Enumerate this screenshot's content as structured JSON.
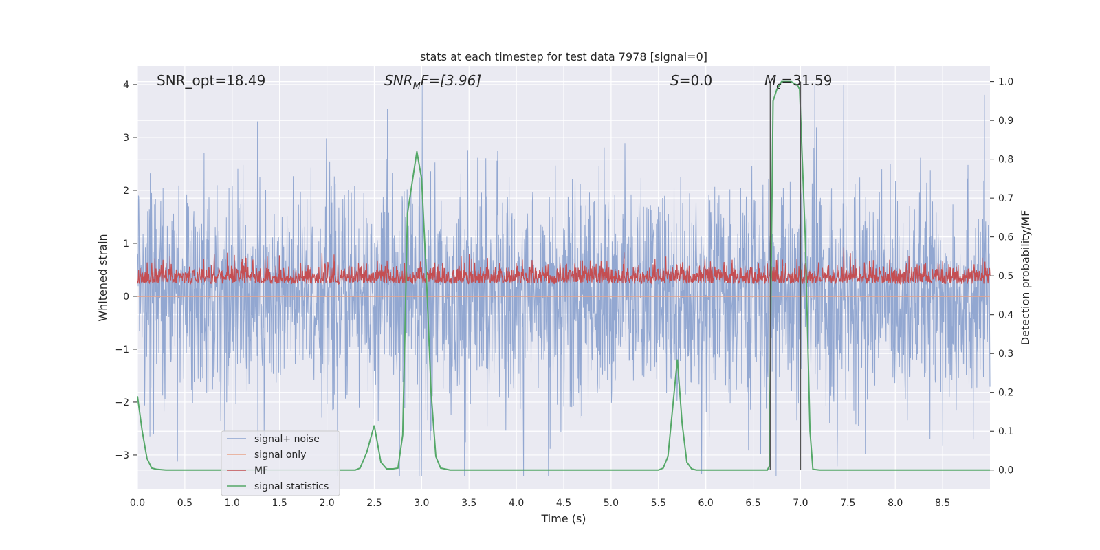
{
  "chart_data": {
    "type": "line",
    "title": "stats at each timestep for test data 7978 [signal=0]",
    "xlabel": "Time (s)",
    "ylabel_left": "Whitened strain",
    "ylabel_right": "Detection probability/MF",
    "xlim": [
      0,
      9.0
    ],
    "ylim_left": [
      -3.65,
      4.35
    ],
    "ylim_right": [
      -0.05,
      1.04
    ],
    "grid": true,
    "legend_position": "lower-left",
    "x_ticks": [
      "0.0",
      "0.5",
      "1.0",
      "1.5",
      "2.0",
      "2.5",
      "3.0",
      "3.5",
      "4.0",
      "4.5",
      "5.0",
      "5.5",
      "6.0",
      "6.5",
      "7.0",
      "7.5",
      "8.0",
      "8.5"
    ],
    "x_tick_values": [
      0,
      0.5,
      1,
      1.5,
      2,
      2.5,
      3,
      3.5,
      4,
      4.5,
      5,
      5.5,
      6,
      6.5,
      7,
      7.5,
      8,
      8.5
    ],
    "y_left_ticks": [
      "4",
      "3",
      "2",
      "1",
      "0",
      "−1",
      "−2",
      "−3"
    ],
    "y_left_tick_values": [
      4,
      3,
      2,
      1,
      0,
      -1,
      -2,
      -3
    ],
    "y_right_ticks": [
      "1.0",
      "0.9",
      "0.8",
      "0.7",
      "0.6",
      "0.5",
      "0.4",
      "0.3",
      "0.2",
      "0.1",
      "0.0"
    ],
    "y_right_tick_values": [
      1.0,
      0.9,
      0.8,
      0.7,
      0.6,
      0.5,
      0.4,
      0.3,
      0.2,
      0.1,
      0.0
    ],
    "annotations": {
      "snr_opt": "SNR_opt=18.49",
      "snr_mf_main": "SNR",
      "snr_mf_sub": "M",
      "snr_mf_rest": "F=[3.96]",
      "s_main": "S",
      "s_rest": "=0.0",
      "mc_main": "M",
      "mc_sub": "c",
      "mc_rest": "=31.59"
    },
    "vertical_lines_x": [
      6.68,
      7.0
    ],
    "series": [
      {
        "name": "signal+ noise",
        "color": "#8da3cf",
        "axis": "left",
        "description_range": [
          -3.4,
          4.0
        ]
      },
      {
        "name": "signal only",
        "color": "#e8a48a",
        "axis": "left",
        "values_constant": 0.0
      },
      {
        "name": "MF",
        "color": "#c44e52",
        "axis": "right",
        "baseline": 0.5,
        "range": [
          0.45,
          0.58
        ]
      },
      {
        "name": "signal statistics",
        "color": "#55a868",
        "axis": "right",
        "x": [
          0,
          0.05,
          0.1,
          0.15,
          0.2,
          0.3,
          0.5,
          0.8,
          1.0,
          1.5,
          2.0,
          2.3,
          2.35,
          2.42,
          2.5,
          2.57,
          2.63,
          2.7,
          2.75,
          2.8,
          2.85,
          2.95,
          3.0,
          3.05,
          3.1,
          3.15,
          3.2,
          3.3,
          3.5,
          4.0,
          4.5,
          5.0,
          5.5,
          5.55,
          5.6,
          5.7,
          5.75,
          5.8,
          5.85,
          5.9,
          6.0,
          6.5,
          6.65,
          6.67,
          6.69,
          6.71,
          6.75,
          6.8,
          6.9,
          6.97,
          6.99,
          7.05,
          7.1,
          7.13,
          7.2,
          7.5,
          8.0,
          8.5,
          9.0
        ],
        "values": [
          0.19,
          0.1,
          0.03,
          0.005,
          0.002,
          0.0,
          0.0,
          0.0,
          0.0,
          0.0,
          0.0,
          0.0,
          0.005,
          0.045,
          0.115,
          0.02,
          0.003,
          0.003,
          0.005,
          0.09,
          0.66,
          0.82,
          0.75,
          0.5,
          0.2,
          0.035,
          0.005,
          0.0,
          0.0,
          0.0,
          0.0,
          0.0,
          0.0,
          0.005,
          0.035,
          0.285,
          0.12,
          0.02,
          0.003,
          0.0,
          0.0,
          0.0,
          0.0,
          0.01,
          0.5,
          0.95,
          0.98,
          1.0,
          1.0,
          0.99,
          0.98,
          0.6,
          0.1,
          0.002,
          0.0,
          0.0,
          0.0,
          0.0,
          0.0
        ]
      }
    ]
  }
}
